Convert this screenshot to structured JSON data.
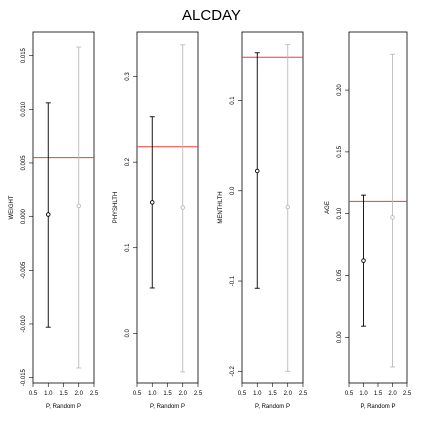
{
  "title": "ALCDAY",
  "chart_data": [
    {
      "type": "scatter",
      "ylabel": "WEIGHT",
      "xlabel": "P, Random P",
      "xlim": [
        0.5,
        2.5
      ],
      "xticks": [
        "0.5",
        "1.0",
        "1.5",
        "2.0",
        "2.5"
      ],
      "ylim": [
        -0.0155,
        0.0172
      ],
      "yticks": [
        "-0.015",
        "-0.010",
        "-0.005",
        "0.000",
        "0.005",
        "0.010",
        "0.015"
      ],
      "reference_line": 0.0055,
      "points": [
        {
          "x": 1.0,
          "y": 0.0002,
          "low": -0.0103,
          "high": 0.0106,
          "color": "#000000"
        },
        {
          "x": 2.0,
          "y": 0.001,
          "low": -0.0141,
          "high": 0.0158,
          "color": "#bbbbbb"
        }
      ]
    },
    {
      "type": "scatter",
      "ylabel": "PHYSHLTH",
      "xlabel": "P, Random P",
      "xlim": [
        0.5,
        2.5
      ],
      "xticks": [
        "0.5",
        "1.0",
        "1.5",
        "2.0",
        "2.5"
      ],
      "ylim": [
        -0.058,
        0.352
      ],
      "yticks": [
        "0.0",
        "0.1",
        "0.2",
        "0.3"
      ],
      "reference_line": 0.218,
      "points": [
        {
          "x": 1.0,
          "y": 0.153,
          "low": 0.053,
          "high": 0.253,
          "color": "#000000"
        },
        {
          "x": 2.0,
          "y": 0.147,
          "low": -0.045,
          "high": 0.337,
          "color": "#bbbbbb"
        }
      ]
    },
    {
      "type": "scatter",
      "ylabel": "MENTHLTH",
      "xlabel": "P, Random P",
      "xlim": [
        0.5,
        2.5
      ],
      "xticks": [
        "0.5",
        "1.0",
        "1.5",
        "2.0",
        "2.5"
      ],
      "ylim": [
        -0.213,
        0.176
      ],
      "yticks": [
        "-0.2",
        "-0.1",
        "0.0",
        "0.1"
      ],
      "reference_line": 0.148,
      "points": [
        {
          "x": 1.0,
          "y": 0.022,
          "low": -0.108,
          "high": 0.153,
          "color": "#000000"
        },
        {
          "x": 2.0,
          "y": -0.018,
          "low": -0.2,
          "high": 0.162,
          "color": "#bbbbbb"
        }
      ]
    },
    {
      "type": "scatter",
      "ylabel": "AGE",
      "xlabel": "P, Random P",
      "xlim": [
        0.5,
        2.5
      ],
      "xticks": [
        "0.5",
        "1.0",
        "1.5",
        "2.0",
        "2.5"
      ],
      "ylim": [
        -0.037,
        0.247
      ],
      "yticks": [
        "0.00",
        "0.05",
        "0.10",
        "0.15",
        "0.20"
      ],
      "reference_line": 0.11,
      "points": [
        {
          "x": 1.0,
          "y": 0.062,
          "low": 0.009,
          "high": 0.115,
          "color": "#000000"
        },
        {
          "x": 2.0,
          "y": 0.097,
          "low": -0.024,
          "high": 0.229,
          "color": "#bbbbbb"
        }
      ]
    }
  ],
  "colors": {
    "reference_line": "#e8403a",
    "primary": "#000000",
    "random": "#bbbbbb"
  }
}
